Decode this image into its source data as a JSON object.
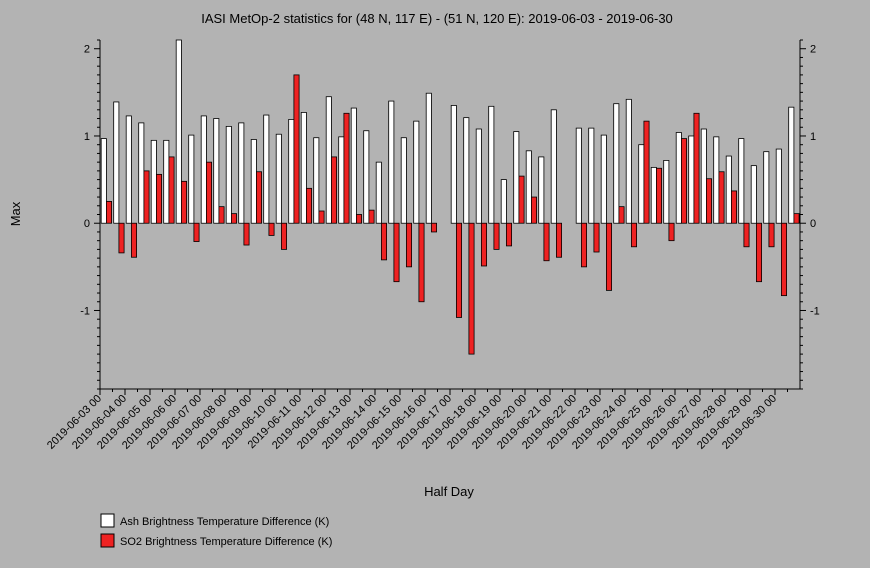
{
  "chart_data": {
    "type": "bar",
    "title": "IASI MetOp-2 statistics for (48 N, 117 E) - (51 N, 120 E): 2019-06-03 - 2019-06-30",
    "xlabel": "Half Day",
    "ylabel": "Max",
    "ylim": [
      -1.9,
      2.1
    ],
    "yticks": [
      -1,
      0,
      1,
      2
    ],
    "grid": false,
    "legend_position": "bottom-left",
    "categories": [
      "2019-06-03 00",
      "2019-06-03 12",
      "2019-06-04 00",
      "2019-06-04 12",
      "2019-06-05 00",
      "2019-06-05 12",
      "2019-06-06 00",
      "2019-06-06 12",
      "2019-06-07 00",
      "2019-06-07 12",
      "2019-06-08 00",
      "2019-06-08 12",
      "2019-06-09 00",
      "2019-06-09 12",
      "2019-06-10 00",
      "2019-06-10 12",
      "2019-06-11 00",
      "2019-06-11 12",
      "2019-06-12 00",
      "2019-06-12 12",
      "2019-06-13 00",
      "2019-06-13 12",
      "2019-06-14 00",
      "2019-06-14 12",
      "2019-06-15 00",
      "2019-06-15 12",
      "2019-06-16 00",
      "2019-06-16 12",
      "2019-06-17 00",
      "2019-06-17 12",
      "2019-06-18 00",
      "2019-06-18 12",
      "2019-06-19 00",
      "2019-06-19 12",
      "2019-06-20 00",
      "2019-06-20 12",
      "2019-06-21 00",
      "2019-06-21 12",
      "2019-06-22 00",
      "2019-06-22 12",
      "2019-06-23 00",
      "2019-06-23 12",
      "2019-06-24 00",
      "2019-06-24 12",
      "2019-06-25 00",
      "2019-06-25 12",
      "2019-06-26 00",
      "2019-06-26 12",
      "2019-06-27 00",
      "2019-06-27 12",
      "2019-06-28 00",
      "2019-06-28 12",
      "2019-06-29 00",
      "2019-06-29 12",
      "2019-06-30 00",
      "2019-06-30 12"
    ],
    "tick_labels": [
      "2019-06-03 00",
      "2019-06-04 00",
      "2019-06-05 00",
      "2019-06-06 00",
      "2019-06-07 00",
      "2019-06-08 00",
      "2019-06-09 00",
      "2019-06-10 00",
      "2019-06-11 00",
      "2019-06-12 00",
      "2019-06-13 00",
      "2019-06-14 00",
      "2019-06-15 00",
      "2019-06-16 00",
      "2019-06-17 00",
      "2019-06-18 00",
      "2019-06-19 00",
      "2019-06-20 00",
      "2019-06-21 00",
      "2019-06-22 00",
      "2019-06-23 00",
      "2019-06-24 00",
      "2019-06-25 00",
      "2019-06-26 00",
      "2019-06-27 00",
      "2019-06-28 00",
      "2019-06-29 00",
      "2019-06-30 00"
    ],
    "series": [
      {
        "name": "Ash Brightness Temperature Difference (K)",
        "color": "#ffffff",
        "values": [
          0.97,
          1.39,
          1.23,
          1.15,
          0.95,
          0.95,
          2.1,
          1.01,
          1.23,
          1.2,
          1.11,
          1.15,
          0.96,
          1.24,
          1.02,
          1.19,
          1.27,
          0.98,
          1.45,
          0.99,
          1.32,
          1.06,
          0.7,
          1.4,
          0.98,
          1.17,
          1.49,
          null,
          1.35,
          1.21,
          1.08,
          1.34,
          0.5,
          1.05,
          0.83,
          0.76,
          1.3,
          null,
          1.09,
          1.09,
          1.01,
          1.37,
          1.42,
          0.9,
          0.64,
          0.72,
          1.04,
          1.0,
          1.08,
          0.99,
          0.77,
          0.97,
          0.66,
          0.82,
          0.85,
          1.33
        ]
      },
      {
        "name": "SO2 Brightness Temperature Difference (K)",
        "color": "#ee2222",
        "values": [
          0.25,
          -0.34,
          -0.39,
          0.6,
          0.56,
          0.76,
          0.48,
          -0.21,
          0.7,
          0.19,
          0.11,
          -0.25,
          0.59,
          -0.14,
          -0.3,
          1.7,
          0.4,
          0.14,
          0.76,
          1.26,
          0.1,
          0.15,
          -0.42,
          -0.67,
          -0.5,
          -0.9,
          -0.1,
          null,
          -1.08,
          -1.5,
          -0.49,
          -0.3,
          -0.26,
          0.54,
          0.3,
          -0.43,
          -0.39,
          null,
          -0.5,
          -0.33,
          -0.77,
          0.19,
          -0.27,
          1.17,
          0.63,
          -0.2,
          0.97,
          1.26,
          0.51,
          0.59,
          0.37,
          -0.27,
          -0.67,
          -0.27,
          -0.83,
          0.11
        ]
      }
    ]
  },
  "legend": {
    "items": [
      {
        "label": "Ash Brightness Temperature Difference (K)",
        "color": "#ffffff"
      },
      {
        "label": "SO2 Brightness Temperature Difference (K)",
        "color": "#ee2222"
      }
    ]
  }
}
